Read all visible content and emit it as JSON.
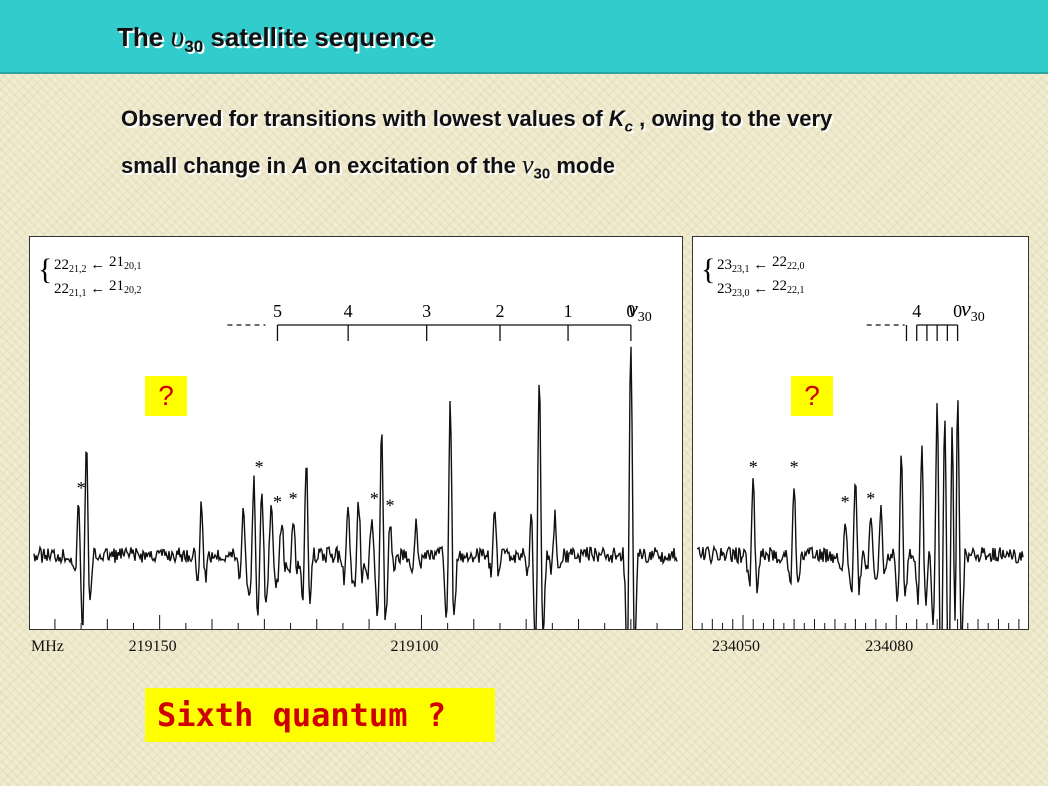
{
  "title": {
    "prefix": "The ",
    "nu": "υ",
    "sub": "30",
    "suffix": " satellite sequence"
  },
  "subtitle": {
    "line1_a": "Observed for transitions with lowest values of ",
    "K": "K",
    "K_sub": "c",
    "line1_b": " , owing to the very",
    "line2_a": "small change in ",
    "A": "A",
    "line2_b": " on excitation of the ",
    "nu": "ν",
    "nu_sub": "30",
    "line2_c": " mode"
  },
  "question_mark": "?",
  "sixth_quantum": "Sixth quantum ?",
  "mhz_label": "MHz",
  "colors": {
    "header": "#33cccc",
    "highlight": "#ffff00",
    "alert": "#d00000"
  },
  "chart_data": [
    {
      "type": "line",
      "transitions": [
        {
          "upper": "22",
          "upper_sub": "21,2",
          "lower": "21",
          "lower_sub": "20,1"
        },
        {
          "upper": "22",
          "upper_sub": "21,1",
          "lower": "21",
          "lower_sub": "20,2"
        }
      ],
      "arrow": "←",
      "v_label": "v",
      "v_sub": "30",
      "satellite_labels": [
        "5",
        "4",
        "3",
        "2",
        "1",
        "0"
      ],
      "satellite_freqs": [
        219127.5,
        219114,
        219099,
        219085,
        219072,
        219060
      ],
      "x_reverse_note": "frequency decreases left to right",
      "xlim": [
        219174,
        219051
      ],
      "xticks": [
        219100,
        219150
      ],
      "star_label": "*",
      "stars": [
        219165,
        219131,
        219127.5,
        219124.5,
        219109,
        219106
      ],
      "lines": [
        {
          "f": 219164,
          "h": 0.62
        },
        {
          "f": 219165.5,
          "h": 0.28
        },
        {
          "f": 219142,
          "h": 0.3
        },
        {
          "f": 219134,
          "h": 0.28
        },
        {
          "f": 219132,
          "h": 0.42
        },
        {
          "f": 219130.5,
          "h": 0.4
        },
        {
          "f": 219128.7,
          "h": 0.3
        },
        {
          "f": 219126.7,
          "h": 0.2
        },
        {
          "f": 219124.5,
          "h": 0.22
        },
        {
          "f": 219122,
          "h": 0.55
        },
        {
          "f": 219114,
          "h": 0.3
        },
        {
          "f": 219112,
          "h": 0.3
        },
        {
          "f": 219109.5,
          "h": 0.22
        },
        {
          "f": 219107.6,
          "h": 0.68
        },
        {
          "f": 219106,
          "h": 0.18
        },
        {
          "f": 219101,
          "h": 0.18
        },
        {
          "f": 219094.5,
          "h": 0.86
        },
        {
          "f": 219086,
          "h": 0.25
        },
        {
          "f": 219079,
          "h": 0.2
        },
        {
          "f": 219074.5,
          "h": 0.22
        },
        {
          "f": 219077.5,
          "h": 1.0
        },
        {
          "f": 219060,
          "h": 1.2
        }
      ]
    },
    {
      "type": "line",
      "transitions": [
        {
          "upper": "23",
          "upper_sub": "23,1",
          "lower": "22",
          "lower_sub": "22,0"
        },
        {
          "upper": "23",
          "upper_sub": "23,0",
          "lower": "22",
          "lower_sub": "22,1"
        }
      ],
      "arrow": "←",
      "v_label": "v",
      "v_sub": "30",
      "satellite_labels": [
        "4",
        "0"
      ],
      "satellite_freqs": [
        234084,
        234092
      ],
      "xlim": [
        234041,
        234105
      ],
      "xticks": [
        234050,
        234080
      ],
      "star_label": "*",
      "stars": [
        234052,
        234060,
        234070,
        234075
      ],
      "lines": [
        {
          "f": 234052,
          "h": 0.4
        },
        {
          "f": 234060,
          "h": 0.4
        },
        {
          "f": 234070,
          "h": 0.2
        },
        {
          "f": 234072,
          "h": 0.45
        },
        {
          "f": 234075,
          "h": 0.22
        },
        {
          "f": 234077,
          "h": 0.3
        },
        {
          "f": 234081,
          "h": 0.55
        },
        {
          "f": 234085,
          "h": 0.6
        },
        {
          "f": 234088,
          "h": 0.85
        },
        {
          "f": 234089.5,
          "h": 0.8
        },
        {
          "f": 234091,
          "h": 1.05
        },
        {
          "f": 234092,
          "h": 1.2
        }
      ]
    }
  ]
}
